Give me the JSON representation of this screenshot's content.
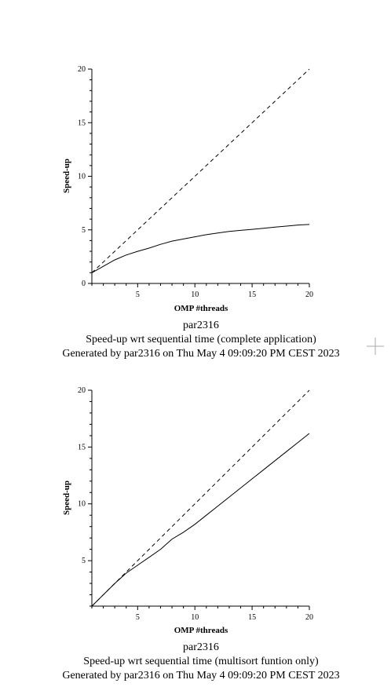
{
  "chart_data": [
    {
      "type": "line",
      "xlabel": "OMP #threads",
      "ylabel": "Speed-up",
      "xlim": [
        1,
        20
      ],
      "ylim": [
        0,
        20
      ],
      "xticks": [
        5,
        10,
        15,
        20
      ],
      "yticks": [
        0,
        5,
        10,
        15,
        20
      ],
      "series": [
        {
          "style": "solid",
          "x": [
            1,
            2,
            3,
            4,
            5,
            6,
            7,
            8,
            9,
            10,
            11,
            12,
            13,
            14,
            15,
            16,
            17,
            18,
            19,
            20
          ],
          "y": [
            1.0,
            1.6,
            2.2,
            2.65,
            3.0,
            3.3,
            3.65,
            3.95,
            4.15,
            4.35,
            4.55,
            4.7,
            4.85,
            4.95,
            5.05,
            5.15,
            5.25,
            5.35,
            5.45,
            5.5
          ]
        },
        {
          "style": "dashed",
          "x": [
            1,
            20
          ],
          "y": [
            1,
            20
          ]
        }
      ],
      "captions": [
        "par2316",
        "Speed-up wrt sequential time (complete application)",
        "Generated by par2316 on Thu May  4 09:09:20 PM CEST 2023"
      ]
    },
    {
      "type": "line",
      "xlabel": "OMP #threads",
      "ylabel": "Speed-up",
      "xlim": [
        1,
        20
      ],
      "ylim": [
        1,
        20
      ],
      "xticks": [
        5,
        10,
        15,
        20
      ],
      "yticks": [
        5,
        10,
        15,
        20
      ],
      "series": [
        {
          "style": "solid",
          "x": [
            1,
            2,
            3,
            4,
            5,
            6,
            7,
            8,
            9,
            10,
            11,
            12,
            13,
            14,
            15,
            16,
            17,
            18,
            19,
            20
          ],
          "y": [
            1.0,
            2.0,
            3.0,
            3.9,
            4.6,
            5.3,
            6.0,
            6.9,
            7.5,
            8.2,
            9.0,
            9.8,
            10.6,
            11.4,
            12.2,
            13.0,
            13.8,
            14.6,
            15.4,
            16.2
          ]
        },
        {
          "style": "dashed",
          "x": [
            1,
            20
          ],
          "y": [
            1,
            20
          ]
        }
      ],
      "captions": [
        "par2316",
        "Speed-up wrt sequential time (multisort funtion only)",
        "Generated by par2316 on Thu May  4 09:09:20 PM CEST 2023"
      ]
    }
  ]
}
